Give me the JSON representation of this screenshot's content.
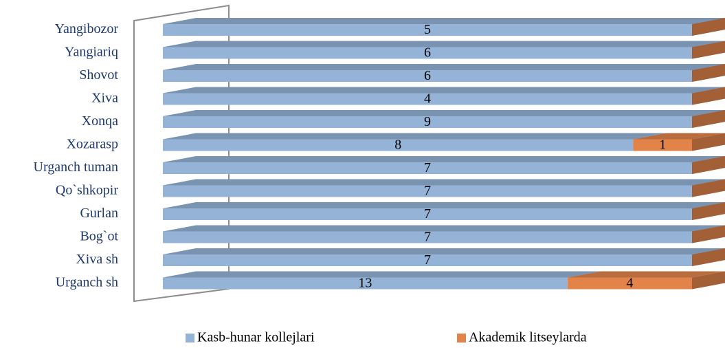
{
  "chart_data": {
    "type": "stacked_bar_100_3d",
    "categories": [
      "Yangibozor",
      "Yangiariq",
      "Shovot",
      "Xiva",
      "Xonqa",
      "Xozarasp",
      "Urganch tuman",
      "Qo`shkopir",
      "Gurlan",
      "Bog`ot",
      "Xiva sh",
      "Urganch sh"
    ],
    "series": [
      {
        "name": "Kasb-hunar kollejlari",
        "color": "#95b3d7",
        "values": [
          5,
          6,
          6,
          4,
          9,
          8,
          7,
          7,
          7,
          7,
          7,
          13
        ]
      },
      {
        "name": "Akademik litseylarda",
        "color": "#e2844a",
        "values": [
          0,
          0,
          0,
          0,
          0,
          1,
          0,
          0,
          0,
          0,
          0,
          4
        ]
      }
    ],
    "legend": "bottom"
  }
}
